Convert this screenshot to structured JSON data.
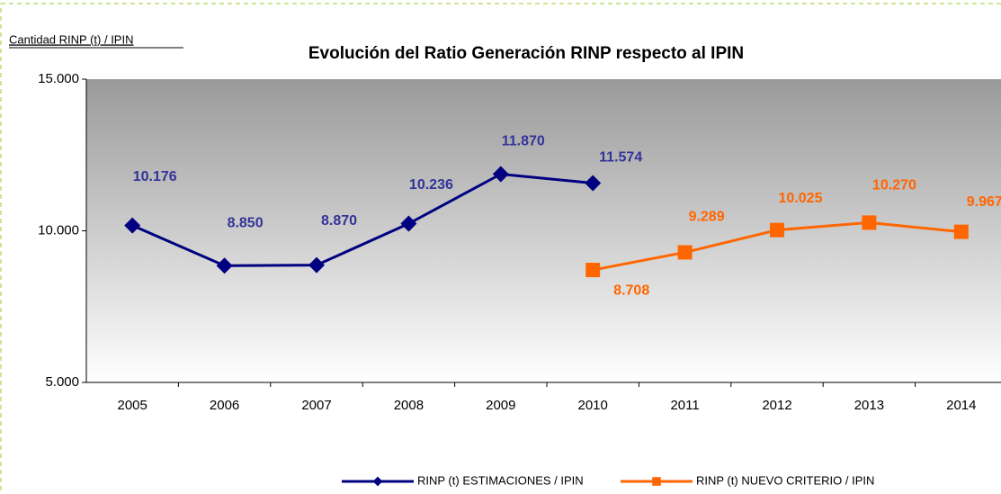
{
  "chart_data": {
    "type": "line",
    "title": "Evolución del Ratio Generación RINP respecto al IPIN",
    "y_label": "Cantidad RINP (t) / IPIN",
    "categories": [
      "2005",
      "2006",
      "2007",
      "2008",
      "2009",
      "2010",
      "2011",
      "2012",
      "2013",
      "2014"
    ],
    "series": [
      {
        "name": "RINP (t) ESTIMACIONES / IPIN",
        "color": "#000080",
        "label_color": "#333399",
        "marker": "diamond",
        "values": [
          10176,
          8850,
          8870,
          10236,
          11870,
          11574,
          null,
          null,
          null,
          null
        ],
        "value_labels": [
          "10.176",
          "8.850",
          "8.870",
          "10.236",
          "11.870",
          "11.574",
          null,
          null,
          null,
          null
        ]
      },
      {
        "name": "RINP (t) NUEVO CRITERIO / IPIN",
        "color": "#ff6600",
        "label_color": "#ff6600",
        "marker": "square",
        "values": [
          null,
          null,
          null,
          null,
          null,
          8708,
          9289,
          10025,
          10270,
          9967
        ],
        "value_labels": [
          null,
          null,
          null,
          null,
          null,
          "8.708",
          "9.289",
          "10.025",
          "10.270",
          "9.967"
        ]
      }
    ],
    "ylim": [
      5000,
      15000
    ],
    "yticks": [
      {
        "value": 5000,
        "label": "5.000"
      },
      {
        "value": 10000,
        "label": "10.000"
      },
      {
        "value": 15000,
        "label": "15.000"
      }
    ],
    "legend": "bottom"
  }
}
